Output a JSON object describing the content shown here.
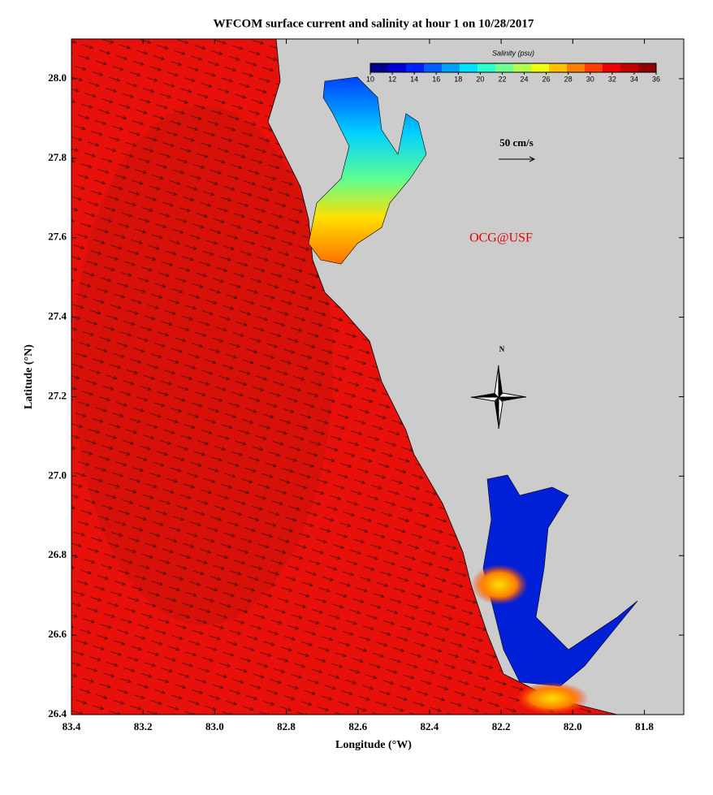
{
  "title": "WFCOM surface current and salinity at hour 1 on 10/28/2017",
  "x_axis": {
    "label": "Longitude (°W)",
    "lim": [
      83.4,
      81.69
    ],
    "ticks": [
      83.4,
      83.2,
      {
        "value": 83,
        "label": "83.0"
      },
      82.8,
      82.6,
      82.4,
      82.2,
      {
        "value": 82,
        "label": "82.0"
      },
      81.8
    ]
  },
  "y_axis": {
    "label": "Latitude (°N)",
    "lim": [
      26.4,
      28.1
    ],
    "ticks": [
      {
        "value": 26.4,
        "label": "26.4"
      },
      {
        "value": 26.6,
        "label": "26.6"
      },
      {
        "value": 26.8,
        "label": "26.8"
      },
      {
        "value": 27,
        "label": "27.0"
      },
      {
        "value": 27.2,
        "label": "27.2"
      },
      {
        "value": 27.4,
        "label": "27.4"
      },
      {
        "value": 27.6,
        "label": "27.6"
      },
      {
        "value": 27.8,
        "label": "27.8"
      },
      {
        "value": 28,
        "label": "28.0"
      }
    ]
  },
  "colorbar": {
    "label": "Salinity (psu)",
    "lim": [
      10,
      36
    ],
    "ticks": [
      10,
      12,
      14,
      16,
      18,
      20,
      22,
      24,
      26,
      28,
      30,
      32,
      34,
      36
    ],
    "colors": [
      "#00008f",
      "#0000d0",
      "#0020ff",
      "#0060ff",
      "#00a0ff",
      "#00e0ff",
      "#30ffd0",
      "#70ff90",
      "#b0ff50",
      "#f0ff10",
      "#ffc000",
      "#ff8000",
      "#ff4000",
      "#f00000",
      "#c00000",
      "#900000"
    ]
  },
  "scale_label": "50 cm/s",
  "credit": "OCG@USF",
  "north": "N"
}
